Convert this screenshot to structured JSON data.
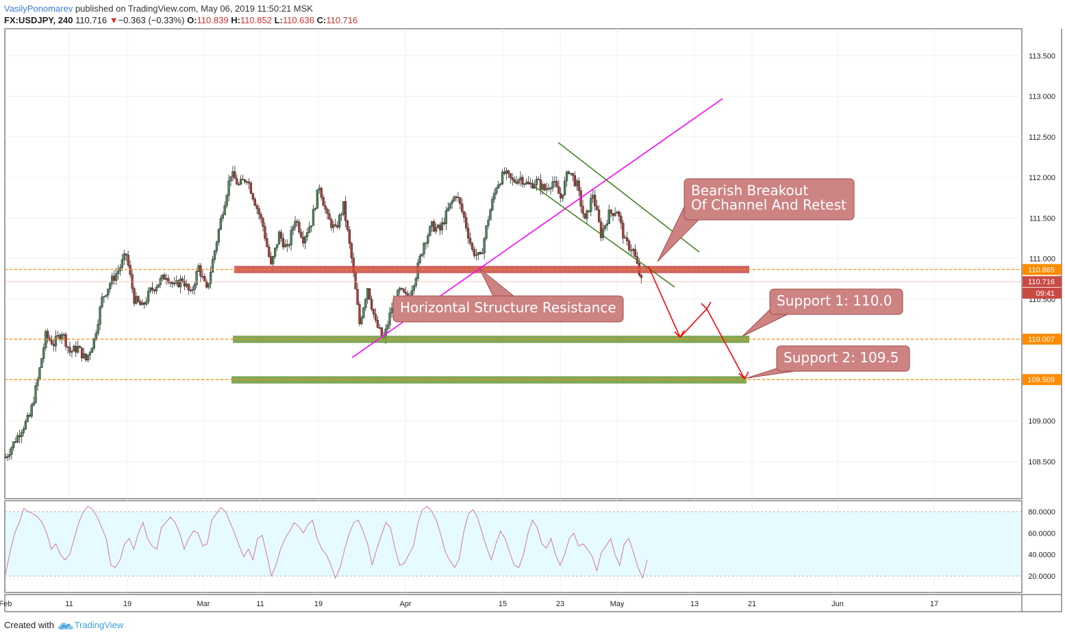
{
  "header": {
    "author": "VasilyPonomarev",
    "published_text": "published on TradingView.com, May 06, 2019 11:50:21 MSK",
    "symbol": "FX:USDJPY, 240",
    "last": "110.716",
    "change_arrow": "▼",
    "change": "−0.363 (−0.33%)",
    "o_label": "O:",
    "o_value": "110.839",
    "h_label": "H:",
    "h_value": "110.852",
    "l_label": "L:",
    "l_value": "110.636",
    "c_label": "C:",
    "c_value": "110.716"
  },
  "footer": {
    "created_with": "Created with",
    "brand": "TradingView",
    "logo_icon": "tradingview-cloud-icon"
  },
  "colors": {
    "bull": "#4c8a5e",
    "bear": "#b23b36",
    "orange": "#ff8c00",
    "resistance_zone": "#c94a45",
    "support_zone": "#6a9a3c",
    "trendline": "#ff00ff",
    "channel": "#3b7a1c",
    "projection": "#ff0000",
    "callout_bg": "#cd8382",
    "rsi_line": "#d273a8",
    "rsi_band": "#e6fbff"
  },
  "chart_data": [
    {
      "type": "candlestick",
      "instrument": "FX:USDJPY",
      "timeframe": "240",
      "y_axis_ticks": [
        "113.500",
        "113.000",
        "112.500",
        "112.000",
        "111.500",
        "111.000",
        "110.500",
        "109.000",
        "108.500"
      ],
      "ylim": [
        108.0,
        113.8
      ],
      "x_axis_ticks": [
        "Feb",
        "11",
        "19",
        "Mar",
        "11",
        "19",
        "Apr",
        "15",
        "23",
        "May",
        "13",
        "21",
        "Jun",
        "17"
      ],
      "price_badges": [
        {
          "label": "110.865",
          "value": 110.865
        },
        {
          "label": "110.716",
          "value": 110.716
        },
        {
          "label": "09:41",
          "value": 110.58
        },
        {
          "label": "110.007",
          "value": 110.007
        },
        {
          "label": "109.509",
          "value": 109.509
        }
      ],
      "horizontal_levels": [
        110.865,
        110.007,
        109.509
      ],
      "zones": [
        {
          "name": "Horizontal Structure Resistance",
          "from": 110.82,
          "to": 110.91
        },
        {
          "name": "Support 1",
          "from": 109.96,
          "to": 110.05
        },
        {
          "name": "Support 2",
          "from": 109.46,
          "to": 109.55
        }
      ],
      "annotations": [
        {
          "text": "Horizontal Structure Resistance"
        },
        {
          "text_line1": "Bearish Breakout",
          "text_line2": "Of Channel And Retest"
        },
        {
          "text": "Support 1: 110.0"
        },
        {
          "text": "Support 2: 109.5"
        }
      ],
      "price_path": [
        [
          0,
          108.55
        ],
        [
          2,
          108.9
        ],
        [
          3,
          109.05
        ],
        [
          4,
          109.5
        ],
        [
          5,
          110.05
        ],
        [
          6,
          109.95
        ],
        [
          7,
          110.1
        ],
        [
          8,
          109.85
        ],
        [
          9,
          109.9
        ],
        [
          10,
          109.75
        ],
        [
          11,
          110.0
        ],
        [
          12,
          110.5
        ],
        [
          13,
          110.7
        ],
        [
          14,
          110.85
        ],
        [
          15,
          111.05
        ],
        [
          16,
          110.5
        ],
        [
          17,
          110.4
        ],
        [
          18,
          110.6
        ],
        [
          19,
          110.7
        ],
        [
          20,
          110.8
        ],
        [
          21,
          110.65
        ],
        [
          22,
          110.75
        ],
        [
          23,
          110.55
        ],
        [
          24,
          110.9
        ],
        [
          25,
          110.6
        ],
        [
          26,
          111.1
        ],
        [
          27,
          111.6
        ],
        [
          28,
          112.05
        ],
        [
          29,
          111.9
        ],
        [
          30,
          112.0
        ],
        [
          31,
          111.7
        ],
        [
          32,
          111.4
        ],
        [
          33,
          110.9
        ],
        [
          34,
          111.3
        ],
        [
          35,
          111.1
        ],
        [
          36,
          111.5
        ],
        [
          37,
          111.25
        ],
        [
          38,
          111.45
        ],
        [
          39,
          111.9
        ],
        [
          40,
          111.5
        ],
        [
          41,
          111.35
        ],
        [
          42,
          111.65
        ],
        [
          43,
          111.0
        ],
        [
          44,
          110.2
        ],
        [
          45,
          110.65
        ],
        [
          46,
          110.2
        ],
        [
          47,
          110.0
        ],
        [
          48,
          110.4
        ],
        [
          49,
          110.6
        ],
        [
          50,
          110.5
        ],
        [
          51,
          110.8
        ],
        [
          52,
          111.2
        ],
        [
          53,
          111.4
        ],
        [
          54,
          111.35
        ],
        [
          55,
          111.6
        ],
        [
          56,
          111.8
        ],
        [
          57,
          111.5
        ],
        [
          58,
          111.1
        ],
        [
          59,
          111.0
        ],
        [
          60,
          111.5
        ],
        [
          61,
          111.9
        ],
        [
          62,
          112.05
        ],
        [
          63,
          111.95
        ],
        [
          64,
          112.0
        ],
        [
          65,
          111.9
        ],
        [
          66,
          111.95
        ],
        [
          67,
          111.85
        ],
        [
          68,
          111.95
        ],
        [
          69,
          111.75
        ],
        [
          70,
          112.1
        ],
        [
          71,
          111.9
        ],
        [
          72,
          111.45
        ],
        [
          73,
          111.8
        ],
        [
          74,
          111.3
        ],
        [
          75,
          111.55
        ],
        [
          76,
          111.6
        ],
        [
          77,
          111.2
        ],
        [
          78,
          111.1
        ],
        [
          79,
          110.716
        ]
      ],
      "rsi": {
        "ticks": [
          "80.0000",
          "60.0000",
          "40.0000",
          "20.0000"
        ],
        "band": [
          20,
          80
        ],
        "values": [
          22,
          42,
          60,
          70,
          83,
          80,
          78,
          75,
          70,
          60,
          45,
          50,
          40,
          35,
          40,
          55,
          70,
          80,
          85,
          82,
          75,
          65,
          55,
          30,
          28,
          35,
          50,
          55,
          45,
          60,
          70,
          55,
          48,
          45,
          65,
          70,
          75,
          70,
          60,
          45,
          55,
          62,
          60,
          48,
          50,
          72,
          78,
          84,
          80,
          70,
          60,
          48,
          38,
          45,
          35,
          55,
          58,
          40,
          20,
          30,
          45,
          55,
          62,
          70,
          66,
          60,
          68,
          72,
          55,
          45,
          40,
          30,
          18,
          28,
          45,
          60,
          70,
          72,
          62,
          50,
          30,
          45,
          58,
          70,
          65,
          45,
          30,
          32,
          40,
          48,
          70,
          82,
          85,
          80,
          72,
          58,
          42,
          34,
          28,
          36,
          62,
          78,
          82,
          74,
          60,
          46,
          35,
          50,
          62,
          55,
          42,
          30,
          28,
          40,
          60,
          72,
          65,
          50,
          46,
          55,
          40,
          30,
          40,
          55,
          60,
          48,
          50,
          45,
          38,
          25,
          42,
          48,
          55,
          40,
          30,
          50,
          55,
          42,
          28,
          18,
          35
        ]
      }
    }
  ]
}
